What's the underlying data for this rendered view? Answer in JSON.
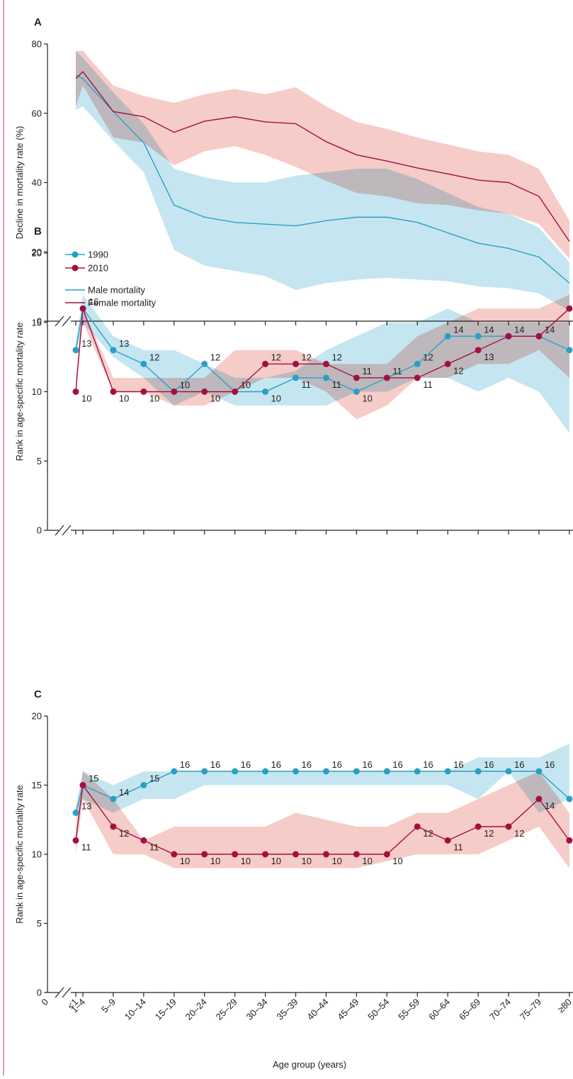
{
  "chart_data": [
    {
      "type": "line",
      "panel_label": "A",
      "ylabel": "Decline in mortality rate (%)",
      "ylim": [
        0,
        80
      ],
      "yticks": [
        0,
        20,
        40,
        60,
        80
      ],
      "legend": "lower left",
      "markers": false,
      "data_labels": false,
      "series": [
        {
          "name": "Male mortality",
          "color": "#2a9fc6",
          "band_color": "#9fd6e6",
          "values": [
            71,
            70,
            60.5,
            51.5,
            33.5,
            30,
            28.5,
            28,
            27.5,
            29,
            30,
            30,
            28.5,
            25.5,
            22.5,
            21,
            18.5,
            11
          ],
          "upper": [
            78,
            76,
            66,
            57,
            44,
            41.5,
            40,
            40,
            42,
            43,
            44,
            44,
            41,
            37,
            33,
            31,
            27,
            17
          ],
          "lower": [
            61,
            62,
            52,
            43,
            20.5,
            16,
            14.5,
            13,
            9,
            11,
            12,
            12.5,
            12,
            11.5,
            10,
            9.5,
            8,
            3
          ]
        },
        {
          "name": "Female mortality",
          "color": "#a3103f",
          "band_color": "#f0aaa4",
          "values": [
            70,
            72,
            60.5,
            59,
            54.5,
            57.7,
            59,
            57.5,
            57,
            51.8,
            48,
            46.2,
            44.2,
            42.5,
            40.7,
            40,
            36,
            23
          ],
          "upper": [
            78,
            78,
            68,
            65,
            63,
            65.5,
            67,
            65.5,
            67.5,
            62,
            57.5,
            55.5,
            53,
            51,
            49,
            48,
            44,
            29
          ],
          "lower": [
            62,
            68,
            53,
            51.5,
            45,
            49,
            50.5,
            48,
            44.5,
            40.5,
            37,
            36,
            34,
            33.5,
            32,
            31,
            28,
            18
          ]
        }
      ]
    },
    {
      "type": "line",
      "panel_label": "B",
      "ylabel": "Rank in age-specific mortality rate",
      "ylim": [
        0,
        20
      ],
      "yticks": [
        0,
        5,
        10,
        15,
        20
      ],
      "legend": "upper left",
      "markers": true,
      "data_labels": true,
      "series": [
        {
          "name": "1990",
          "color": "#2a9fc6",
          "band_color": "#9fd6e6",
          "values": [
            13,
            16,
            13,
            12,
            10,
            12,
            10,
            10,
            11,
            11,
            10,
            11,
            12,
            14,
            14,
            14,
            14,
            13
          ],
          "upper": [
            13.5,
            17,
            14,
            13,
            13,
            12,
            11,
            11,
            11.5,
            13,
            14,
            15,
            15,
            16,
            15,
            15,
            15,
            15
          ],
          "lower": [
            12.5,
            15,
            12.5,
            11,
            9,
            10,
            9,
            9,
            9,
            9,
            10,
            10,
            11,
            11,
            10,
            11,
            10,
            7
          ]
        },
        {
          "name": "2010",
          "color": "#a3103f",
          "band_color": "#f0aaa4",
          "values": [
            10,
            16,
            10,
            10,
            10,
            10,
            10,
            12,
            12,
            12,
            11,
            11,
            11,
            12,
            13,
            14,
            14,
            16
          ],
          "upper": [
            11,
            16,
            11,
            11,
            11,
            11,
            13,
            13,
            13,
            12,
            12,
            12,
            14,
            15,
            16,
            16,
            16,
            17
          ],
          "lower": [
            10,
            15,
            10,
            10,
            9,
            9,
            10,
            11,
            11,
            10,
            8,
            9,
            11,
            11,
            12,
            12,
            13,
            11
          ]
        }
      ]
    },
    {
      "type": "line",
      "panel_label": "C",
      "ylabel": "Rank in age-specific mortality rate",
      "xlabel": "Age group (years)",
      "x_origin_label": "0",
      "categories": [
        "<1",
        "1–4",
        "5–9",
        "10–14",
        "15–19",
        "20–24",
        "25–29",
        "30–34",
        "35–39",
        "40–44",
        "45–49",
        "50–54",
        "55–59",
        "60–64",
        "65–69",
        "70–74",
        "75–79",
        "≥80"
      ],
      "ylim": [
        0,
        20
      ],
      "yticks": [
        0,
        5,
        10,
        15,
        20
      ],
      "markers": true,
      "data_labels": true,
      "series": [
        {
          "color": "#2a9fc6",
          "band_color": "#9fd6e6",
          "values": [
            13,
            15,
            14,
            15,
            16,
            16,
            16,
            16,
            16,
            16,
            16,
            16,
            16,
            16,
            16,
            16,
            16,
            14
          ],
          "upper": [
            13.5,
            16,
            15,
            16,
            16,
            16,
            16,
            16,
            16,
            16,
            16,
            16,
            16,
            16,
            17,
            17,
            17,
            18
          ],
          "lower": [
            12.5,
            14,
            13,
            14,
            14,
            15,
            15,
            15,
            15,
            15,
            15,
            15,
            15,
            15,
            14,
            16,
            13,
            14
          ]
        },
        {
          "color": "#a3103f",
          "band_color": "#f0aaa4",
          "values": [
            11,
            15,
            12,
            11,
            10,
            10,
            10,
            10,
            10,
            10,
            10,
            10,
            12,
            11,
            12,
            12,
            14,
            11
          ],
          "upper": [
            12,
            16,
            14,
            11,
            12,
            12,
            12,
            12,
            13,
            12.5,
            12,
            12,
            13,
            13,
            14,
            15,
            16,
            13
          ],
          "lower": [
            10,
            14,
            10,
            10,
            9,
            9,
            9,
            9,
            9,
            9,
            9,
            9.5,
            10,
            10,
            10,
            11,
            12,
            9
          ]
        }
      ]
    }
  ]
}
